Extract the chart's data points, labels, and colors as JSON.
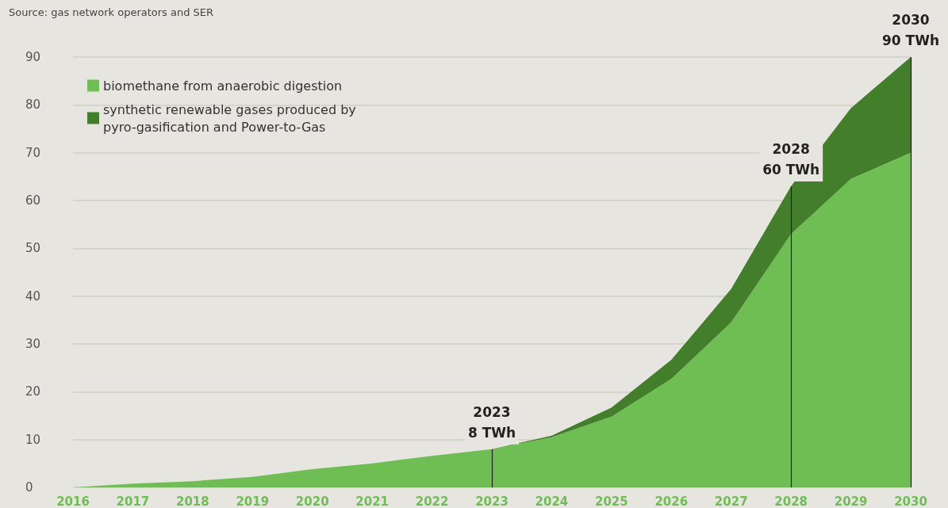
{
  "chart_data": {
    "type": "area",
    "stacked": true,
    "categories": [
      "2016",
      "2017",
      "2018",
      "2019",
      "2020",
      "2021",
      "2022",
      "2023",
      "2024",
      "2025",
      "2026",
      "2027",
      "2028",
      "2029",
      "2030"
    ],
    "series": [
      {
        "name": "biomethane from anaerobic digestion",
        "color": "#6fbe54",
        "values": [
          0,
          0.8,
          1.3,
          2.2,
          3.8,
          5.0,
          6.6,
          8,
          10.5,
          14.8,
          22.7,
          34.5,
          53,
          64.5,
          70
        ]
      },
      {
        "name": "synthetic renewable gases produced by pyro-gasification and Power-to-Gas",
        "color": "#437f2a",
        "values": [
          0,
          0,
          0,
          0,
          0,
          0,
          0,
          0,
          0.3,
          1.9,
          4,
          7,
          10,
          14.8,
          20
        ]
      }
    ],
    "ylim": [
      0,
      90
    ],
    "yticks": [
      0,
      10,
      20,
      30,
      40,
      50,
      60,
      70,
      80,
      90
    ],
    "grid": "y",
    "legend": "top left",
    "annotations": [
      "Source: gas network operators and SER",
      {
        "text": "2023\n8 TWh",
        "x": "2023",
        "y": 8
      },
      {
        "text": "2028\n60 TWh",
        "x": "2028",
        "y": 63
      },
      {
        "text": "2030\n90 TWh",
        "x": "2030",
        "y": 90
      }
    ]
  }
}
